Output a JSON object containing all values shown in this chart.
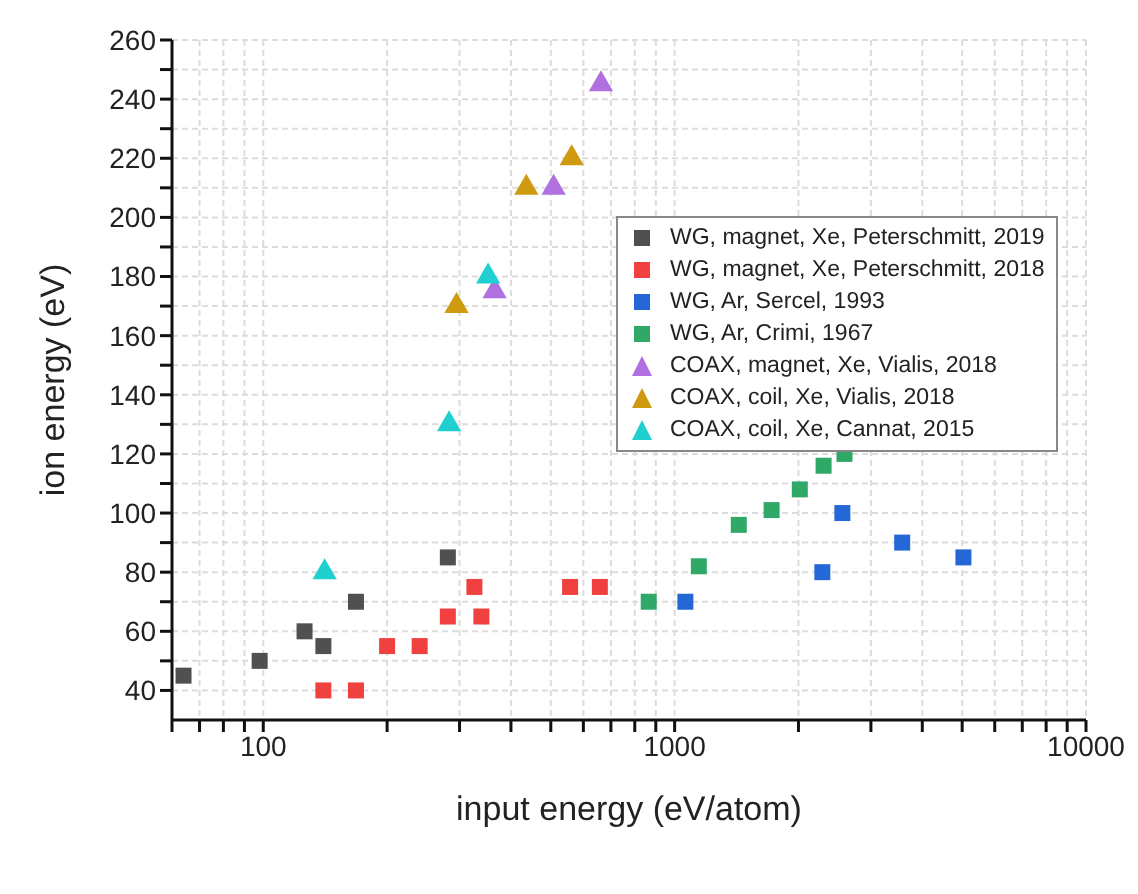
{
  "chart_data": {
    "type": "scatter",
    "xlabel": "input energy (eV/atom)",
    "ylabel": "ion energy (eV)",
    "log": "x",
    "grid": true,
    "legend": "top right",
    "xlim": [
      60,
      10000
    ],
    "ylim": [
      30,
      260
    ],
    "xticks": [
      {
        "value": 60,
        "label": null
      },
      {
        "value": 70,
        "label": null
      },
      {
        "value": 80,
        "label": null
      },
      {
        "value": 90,
        "label": null
      },
      100,
      {
        "value": 200,
        "label": null
      },
      {
        "value": 300,
        "label": null
      },
      {
        "value": 400,
        "label": null
      },
      {
        "value": 500,
        "label": null
      },
      {
        "value": 600,
        "label": null
      },
      {
        "value": 700,
        "label": null
      },
      {
        "value": 800,
        "label": null
      },
      {
        "value": 900,
        "label": null
      },
      1000,
      {
        "value": 2000,
        "label": null
      },
      {
        "value": 3000,
        "label": null
      },
      {
        "value": 4000,
        "label": null
      },
      {
        "value": 5000,
        "label": null
      },
      {
        "value": 6000,
        "label": null
      },
      {
        "value": 7000,
        "label": null
      },
      {
        "value": 8000,
        "label": null
      },
      {
        "value": 9000,
        "label": null
      },
      10000
    ],
    "yticks": [
      40,
      {
        "value": 50,
        "label": null
      },
      60,
      {
        "value": 70,
        "label": null
      },
      80,
      {
        "value": 90,
        "label": null
      },
      100,
      {
        "value": 110,
        "label": null
      },
      120,
      {
        "value": 130,
        "label": null
      },
      140,
      {
        "value": 150,
        "label": null
      },
      160,
      {
        "value": 170,
        "label": null
      },
      180,
      {
        "value": 190,
        "label": null
      },
      200,
      {
        "value": 210,
        "label": null
      },
      220,
      {
        "value": 230,
        "label": null
      },
      240,
      {
        "value": 250,
        "label": null
      },
      260
    ],
    "series": [
      {
        "name": "WG, magnet, Xe, Peterschmitt, 2019",
        "color": "#505050",
        "marker": "square",
        "x": [
          64,
          98,
          126,
          140,
          168,
          281
        ],
        "values": [
          45,
          50,
          60,
          55,
          70,
          85
        ]
      },
      {
        "name": "WG, magnet, Xe, Peterschmitt, 2018",
        "color": "#f04040",
        "marker": "square",
        "x": [
          140,
          168,
          200,
          240,
          281,
          339,
          326,
          557,
          658
        ],
        "values": [
          40,
          40,
          55,
          55,
          65,
          65,
          75,
          75,
          75
        ]
      },
      {
        "name": "WG, Ar, Sercel, 1993",
        "color": "#2468d8",
        "marker": "square",
        "x": [
          1062,
          2286,
          2557,
          3574,
          5035
        ],
        "values": [
          70,
          80,
          100,
          90,
          85
        ]
      },
      {
        "name": "WG, Ar, Crimi, 1967",
        "color": "#30a868",
        "marker": "square",
        "x": [
          865,
          1145,
          1432,
          1721,
          2015,
          2302,
          2588
        ],
        "values": [
          70,
          82,
          96,
          101,
          108,
          116,
          120
        ]
      },
      {
        "name": "COAX, magnet, Xe, Vialis, 2018",
        "color": "#b070e0",
        "marker": "triangle",
        "x": [
          365,
          508,
          662
        ],
        "values": [
          175,
          210,
          245
        ]
      },
      {
        "name": "COAX, coil, Xe, Vialis, 2018",
        "color": "#d09a10",
        "marker": "triangle",
        "x": [
          295,
          436,
          562
        ],
        "values": [
          170,
          210,
          220
        ]
      },
      {
        "name": "COAX, coil, Xe, Cannat, 2015",
        "color": "#20d0d0",
        "marker": "triangle",
        "x": [
          141,
          283,
          352
        ],
        "values": [
          80,
          130,
          180
        ]
      }
    ]
  }
}
